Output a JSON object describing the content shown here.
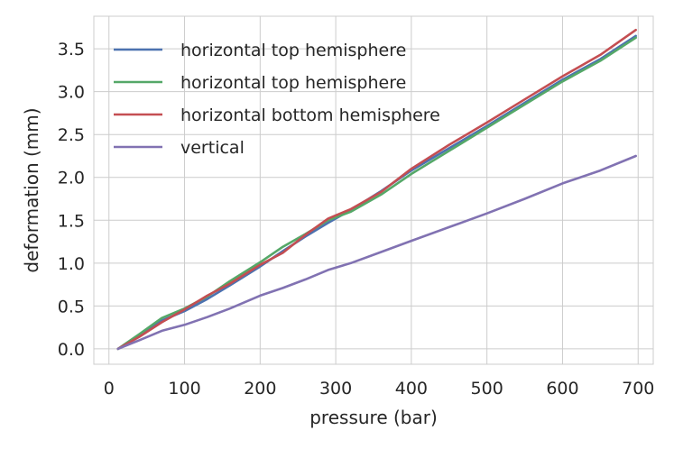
{
  "chart_data": {
    "type": "line",
    "title": "",
    "xlabel": "pressure (bar)",
    "ylabel": "deformation (mm)",
    "xlim": [
      -20,
      720
    ],
    "ylim": [
      -0.18,
      3.88
    ],
    "xticks": [
      0,
      100,
      200,
      300,
      400,
      500,
      600,
      700
    ],
    "yticks": [
      0.0,
      0.5,
      1.0,
      1.5,
      2.0,
      2.5,
      3.0,
      3.5
    ],
    "grid": true,
    "legend_position": "top-left",
    "series": [
      {
        "name": "horizontal top hemisphere",
        "color": "#4c72b0",
        "x": [
          12,
          40,
          70,
          100,
          130,
          160,
          200,
          230,
          260,
          290,
          320,
          360,
          400,
          450,
          500,
          550,
          600,
          650,
          697
        ],
        "y": [
          0.0,
          0.15,
          0.33,
          0.44,
          0.58,
          0.74,
          0.96,
          1.14,
          1.31,
          1.47,
          1.62,
          1.84,
          2.08,
          2.34,
          2.6,
          2.87,
          3.14,
          3.38,
          3.65
        ]
      },
      {
        "name": "horizontal top hemisphere",
        "color": "#55a868",
        "x": [
          12,
          40,
          70,
          100,
          130,
          160,
          200,
          230,
          260,
          290,
          320,
          360,
          400,
          450,
          500,
          550,
          600,
          650,
          697
        ],
        "y": [
          0.0,
          0.17,
          0.36,
          0.47,
          0.61,
          0.79,
          1.01,
          1.19,
          1.34,
          1.5,
          1.6,
          1.8,
          2.04,
          2.31,
          2.58,
          2.85,
          3.12,
          3.36,
          3.63
        ]
      },
      {
        "name": "horizontal bottom hemisphere",
        "color": "#c44e52",
        "x": [
          12,
          40,
          70,
          100,
          130,
          160,
          200,
          230,
          260,
          290,
          320,
          360,
          400,
          450,
          500,
          550,
          600,
          650,
          697
        ],
        "y": [
          0.0,
          0.14,
          0.31,
          0.46,
          0.62,
          0.76,
          0.98,
          1.12,
          1.33,
          1.52,
          1.63,
          1.83,
          2.1,
          2.38,
          2.64,
          2.91,
          3.18,
          3.43,
          3.72
        ]
      },
      {
        "name": "vertical",
        "color": "#8172b2",
        "x": [
          12,
          40,
          70,
          100,
          130,
          160,
          200,
          230,
          260,
          290,
          320,
          360,
          400,
          450,
          500,
          550,
          600,
          650,
          697
        ],
        "y": [
          0.0,
          0.1,
          0.21,
          0.28,
          0.37,
          0.47,
          0.62,
          0.71,
          0.81,
          0.92,
          1.0,
          1.13,
          1.26,
          1.42,
          1.58,
          1.75,
          1.93,
          2.08,
          2.25
        ]
      }
    ]
  }
}
